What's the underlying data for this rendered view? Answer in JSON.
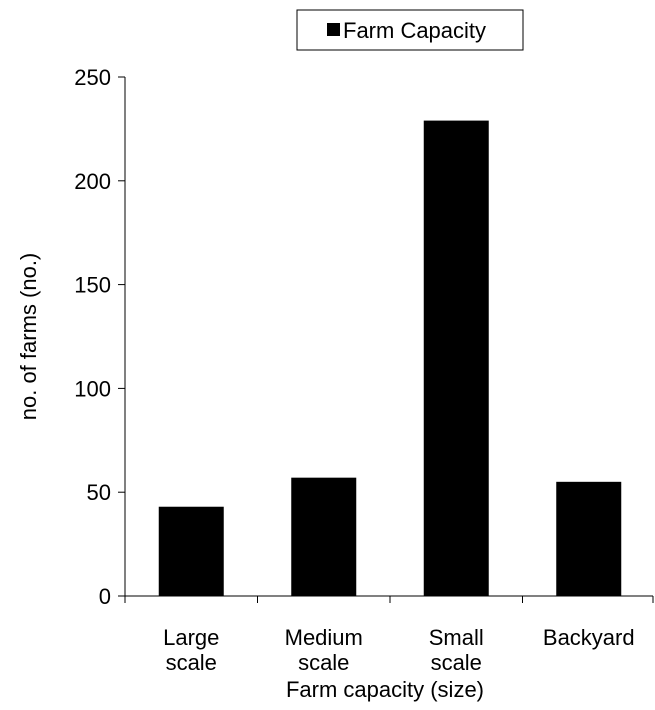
{
  "chart_data": {
    "type": "bar",
    "categories": [
      [
        "Large",
        "scale"
      ],
      [
        "Medium",
        "scale"
      ],
      [
        "Small",
        "scale"
      ],
      [
        "Backyard"
      ]
    ],
    "series": [
      {
        "name": "Farm Capacity",
        "values": [
          43,
          57,
          229,
          55
        ],
        "color": "#000000"
      }
    ],
    "xlabel": "Farm capacity (size)",
    "ylabel": "no. of farms (no.)",
    "ylim": [
      0,
      250
    ],
    "yticks": [
      0,
      50,
      100,
      150,
      200,
      250
    ],
    "grid": false,
    "legend_position": "top"
  }
}
